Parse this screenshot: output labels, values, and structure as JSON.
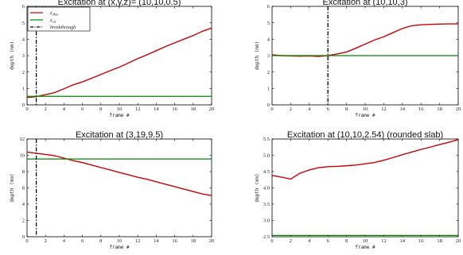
{
  "chart_data": [
    {
      "type": "line",
      "title": "Excitation at (x,y,z)= (10,10,0.5)",
      "xlabel": "frame #",
      "ylabel": "depth (mm)",
      "xlim": [
        0,
        20
      ],
      "ylim": [
        0,
        6
      ],
      "xticks": [
        0,
        2,
        4,
        6,
        8,
        10,
        12,
        14,
        16,
        18,
        20
      ],
      "yticks": [
        0,
        1,
        2,
        3,
        4,
        5,
        6
      ],
      "legend": {
        "position": "top-left",
        "entries": [
          {
            "label": "z_ilbm",
            "sub": "ilbm",
            "color": "#cc0000",
            "style": "solid"
          },
          {
            "label": "z_air",
            "sub": "air",
            "color": "#008800",
            "style": "solid"
          },
          {
            "label": "breakthrough",
            "color": "#000000",
            "style": "dashdot"
          }
        ]
      },
      "series": [
        {
          "color": "#cc0000",
          "x": [
            0,
            1,
            2,
            3,
            4,
            5,
            6,
            7,
            8,
            9,
            10,
            11,
            12,
            13,
            14,
            15,
            16,
            17,
            18,
            19,
            20
          ],
          "y": [
            0.45,
            0.5,
            0.62,
            0.75,
            0.98,
            1.22,
            1.4,
            1.62,
            1.85,
            2.08,
            2.3,
            2.55,
            2.82,
            3.05,
            3.3,
            3.55,
            3.78,
            4.0,
            4.22,
            4.48,
            4.68
          ]
        },
        {
          "color": "#008800",
          "x": [
            0,
            20
          ],
          "y": [
            0.52,
            0.52
          ]
        }
      ],
      "vline": {
        "x": 1,
        "color": "#000000",
        "style": "dashdot"
      }
    },
    {
      "type": "line",
      "title": "Excitation at (10,10,3)",
      "xlabel": "frame #",
      "ylabel": "depth (mm)",
      "xlim": [
        0,
        20
      ],
      "ylim": [
        0,
        6
      ],
      "xticks": [
        0,
        2,
        4,
        6,
        8,
        10,
        12,
        14,
        16,
        18,
        20
      ],
      "yticks": [
        0,
        1,
        2,
        3,
        4,
        5,
        6
      ],
      "series": [
        {
          "color": "#cc0000",
          "x": [
            0,
            1,
            2,
            3,
            4,
            5,
            6,
            7,
            8,
            9,
            10,
            11,
            12,
            13,
            14,
            15,
            16,
            17,
            18,
            19,
            20
          ],
          "y": [
            3.05,
            3.0,
            2.98,
            2.97,
            2.98,
            2.95,
            3.0,
            3.1,
            3.22,
            3.45,
            3.7,
            3.95,
            4.15,
            4.4,
            4.65,
            4.82,
            4.88,
            4.9,
            4.92,
            4.93,
            4.93
          ]
        },
        {
          "color": "#008800",
          "x": [
            0,
            20
          ],
          "y": [
            3.0,
            3.0
          ]
        }
      ],
      "vline": {
        "x": 6,
        "color": "#000000",
        "style": "dashdot"
      }
    },
    {
      "type": "line",
      "title": "Excitation at (3,19,9.5)",
      "xlabel": "frame #",
      "ylabel": "depth (mm)",
      "xlim": [
        0,
        20
      ],
      "ylim": [
        0,
        12
      ],
      "xticks": [
        0,
        2,
        4,
        6,
        8,
        10,
        12,
        14,
        16,
        18,
        20
      ],
      "yticks": [
        0,
        2,
        4,
        6,
        8,
        10,
        12
      ],
      "series": [
        {
          "color": "#cc0000",
          "x": [
            0,
            1,
            2,
            3,
            4,
            5,
            6,
            7,
            8,
            9,
            10,
            11,
            12,
            13,
            14,
            15,
            16,
            17,
            18,
            19,
            20
          ],
          "y": [
            10.4,
            10.25,
            10.1,
            9.95,
            9.65,
            9.35,
            9.1,
            8.8,
            8.5,
            8.2,
            7.9,
            7.6,
            7.3,
            7.05,
            6.75,
            6.45,
            6.15,
            5.85,
            5.55,
            5.25,
            5.05
          ]
        },
        {
          "color": "#008800",
          "x": [
            0,
            20
          ],
          "y": [
            9.55,
            9.55
          ]
        }
      ],
      "vline": {
        "x": 1,
        "color": "#000000",
        "style": "dashdot"
      }
    },
    {
      "type": "line",
      "title": "Excitation at (10,10,2.54) (rounded slab)",
      "xlabel": "frame #",
      "ylabel": "depth (mm)",
      "xlim": [
        0,
        20
      ],
      "ylim": [
        2.5,
        5.5
      ],
      "xticks": [
        0,
        2,
        4,
        6,
        8,
        10,
        12,
        14,
        16,
        18,
        20
      ],
      "yticks": [
        2.5,
        3.0,
        3.5,
        4.0,
        4.5,
        5.0,
        5.5
      ],
      "ytick_labels": [
        "2.5",
        "3.0",
        "3.5",
        "4.0",
        "4.5",
        "5.0",
        "5.5"
      ],
      "series": [
        {
          "color": "#cc0000",
          "x": [
            0,
            1,
            2,
            3,
            4,
            5,
            6,
            7,
            8,
            9,
            10,
            11,
            12,
            13,
            14,
            15,
            16,
            17,
            18,
            19,
            20
          ],
          "y": [
            4.38,
            4.33,
            4.27,
            4.45,
            4.55,
            4.62,
            4.65,
            4.66,
            4.68,
            4.7,
            4.74,
            4.78,
            4.85,
            4.93,
            5.02,
            5.1,
            5.18,
            5.25,
            5.33,
            5.4,
            5.48
          ]
        },
        {
          "color": "#008800",
          "x": [
            0,
            20
          ],
          "y": [
            2.54,
            2.54
          ]
        }
      ]
    }
  ]
}
